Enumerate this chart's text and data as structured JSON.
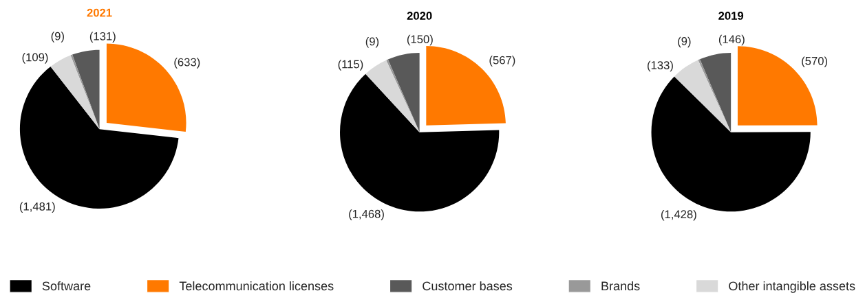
{
  "chart_data": [
    {
      "type": "pie",
      "title": "2021",
      "categories": [
        "Software",
        "Telecommunication licenses",
        "Customer bases",
        "Brands",
        "Other intangible assets"
      ],
      "values": [
        1481,
        633,
        131,
        9,
        109
      ],
      "value_labels": [
        "(1,481)",
        "(633)",
        "(131)",
        "(9)",
        "(109)"
      ],
      "colors": [
        "#000000",
        "#ff7900",
        "#595959",
        "#999999",
        "#d9d9d9"
      ],
      "legend": "bottom"
    },
    {
      "type": "pie",
      "title": "2020",
      "values": [
        1468,
        567,
        150,
        9,
        115
      ],
      "value_labels": [
        "(1,468)",
        "(567)",
        "(150)",
        "(9)",
        "(115)"
      ],
      "colors": [
        "#000000",
        "#ff7900",
        "#595959",
        "#999999",
        "#d9d9d9"
      ]
    },
    {
      "type": "pie",
      "title": "2019",
      "values": [
        1428,
        570,
        146,
        9,
        133
      ],
      "value_labels": [
        "(1,428)",
        "(570)",
        "(146)",
        "(9)",
        "(133)"
      ],
      "colors": [
        "#000000",
        "#ff7900",
        "#595959",
        "#999999",
        "#d9d9d9"
      ]
    }
  ]
}
